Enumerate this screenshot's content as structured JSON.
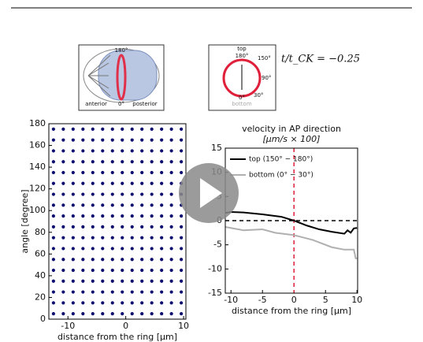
{
  "inset_embryo": {
    "top": "180°",
    "left": "anterior",
    "bottom": "0°",
    "right": "posterior"
  },
  "inset_ring": {
    "top": "top",
    "a180": "180°",
    "a150": "150°",
    "a90": "90°",
    "a30": "30°",
    "a0": "0°",
    "bottom": "bottom"
  },
  "time_label": "t/t_CK = −0.25",
  "chart_data": [
    {
      "type": "scatter",
      "xlabel": "distance from the ring [μm]",
      "ylabel": "angle [degree]",
      "xlim": [
        -13.3,
        10.4
      ],
      "ylim": [
        0,
        180
      ],
      "xticks": [
        -10,
        0,
        10
      ],
      "yticks": [
        0,
        20,
        40,
        60,
        80,
        100,
        120,
        140,
        160,
        180
      ],
      "color": "#0c0c70",
      "x": [
        -12.5,
        -10.8,
        -9.1,
        -7.4,
        -5.7,
        -4,
        -2.3,
        -0.6,
        1.1,
        2.8,
        4.5,
        6.2,
        7.9,
        9.6,
        -12.5,
        -10.8,
        -9.1,
        -7.4,
        -5.7,
        -4,
        -2.3,
        -0.6,
        1.1,
        2.8,
        4.5,
        6.2,
        7.9,
        9.6,
        -12.5,
        -10.8,
        -9.1,
        -7.4,
        -5.7,
        -4,
        -2.3,
        -0.6,
        1.1,
        2.8,
        4.5,
        6.2,
        7.9,
        9.6,
        -12.5,
        -10.8,
        -9.1,
        -7.4,
        -5.7,
        -4,
        -2.3,
        -0.6,
        1.1,
        2.8,
        4.5,
        6.2,
        7.9,
        9.6,
        -12.5,
        -10.8,
        -9.1,
        -7.4,
        -5.7,
        -4,
        -2.3,
        -0.6,
        1.1,
        2.8,
        4.5,
        6.2,
        7.9,
        9.6,
        -12.5,
        -10.8,
        -9.1,
        -7.4,
        -5.7,
        -4,
        -2.3,
        -0.6,
        1.1,
        2.8,
        4.5,
        6.2,
        7.9,
        9.6,
        -12.5,
        -10.8,
        -9.1,
        -7.4,
        -5.7,
        -4,
        -2.3,
        -0.6,
        1.1,
        2.8,
        4.5,
        6.2,
        7.9,
        9.6,
        -12.5,
        -10.8,
        -9.1,
        -7.4,
        -5.7,
        -4,
        -2.3,
        -0.6,
        1.1,
        2.8,
        4.5,
        6.2,
        7.9,
        9.6,
        -12.5,
        -10.8,
        -9.1,
        -7.4,
        -5.7,
        -4,
        -2.3,
        -0.6,
        1.1,
        2.8,
        4.5,
        6.2,
        7.9,
        9.6,
        -12.5,
        -10.8,
        -9.1,
        -7.4,
        -5.7,
        -4,
        -2.3,
        -0.6,
        1.1,
        2.8,
        4.5,
        6.2,
        7.9,
        9.6,
        -12.5,
        -10.8,
        -9.1,
        -7.4,
        -5.7,
        -4,
        -2.3,
        -0.6,
        1.1,
        2.8,
        4.5,
        6.2,
        7.9,
        9.6,
        -12.5,
        -10.8,
        -9.1,
        -7.4,
        -5.7,
        -4,
        -2.3,
        -0.6,
        1.1,
        2.8,
        4.5,
        6.2,
        7.9,
        9.6,
        -12.5,
        -10.8,
        -9.1,
        -7.4,
        -5.7,
        -4,
        -2.3,
        -0.6,
        1.1,
        2.8,
        4.5,
        6.2,
        7.9,
        9.6,
        -12.5,
        -10.8,
        -9.1,
        -7.4,
        -5.7,
        -4,
        -2.3,
        -0.6,
        1.1,
        2.8,
        4.5,
        6.2,
        7.9,
        9.6,
        -12.5,
        -10.8,
        -9.1,
        -7.4,
        -5.7,
        -4,
        -2.3,
        -0.6,
        1.1,
        2.8,
        4.5,
        6.2,
        7.9,
        9.6,
        -12.5,
        -10.8,
        -9.1,
        -7.4,
        -5.7,
        -4,
        -2.3,
        -0.6,
        1.1,
        2.8,
        4.5,
        6.2,
        7.9,
        9.6,
        -12.5,
        -10.8,
        -9.1,
        -7.4,
        -5.7,
        -4,
        -2.3,
        -0.6,
        1.1,
        2.8,
        4.5,
        6.2,
        7.9,
        9.6,
        -12.5,
        -10.8,
        -9.1,
        -7.4,
        -5.7,
        -4,
        -2.3,
        -0.6,
        1.1,
        2.8,
        4.5,
        6.2,
        7.9,
        9.6
      ],
      "y": [
        5,
        5,
        5,
        5,
        5,
        5,
        5,
        5,
        5,
        5,
        5,
        5,
        5,
        5,
        15,
        15,
        15,
        15,
        15,
        15,
        15,
        15,
        15,
        15,
        15,
        15,
        15,
        15,
        25,
        25,
        25,
        25,
        25,
        25,
        25,
        25,
        25,
        25,
        25,
        25,
        25,
        25,
        35,
        35,
        35,
        35,
        35,
        35,
        35,
        35,
        35,
        35,
        35,
        35,
        35,
        35,
        45,
        45,
        45,
        45,
        45,
        45,
        45,
        45,
        45,
        45,
        45,
        45,
        45,
        45,
        55,
        55,
        55,
        55,
        55,
        55,
        55,
        55,
        55,
        55,
        55,
        55,
        55,
        55,
        65,
        65,
        65,
        65,
        65,
        65,
        65,
        65,
        65,
        65,
        65,
        65,
        65,
        65,
        75,
        75,
        75,
        75,
        75,
        75,
        75,
        75,
        75,
        75,
        75,
        75,
        75,
        75,
        85,
        85,
        85,
        85,
        85,
        85,
        85,
        85,
        85,
        85,
        85,
        85,
        85,
        85,
        95,
        95,
        95,
        95,
        95,
        95,
        95,
        95,
        95,
        95,
        95,
        95,
        95,
        95,
        105,
        105,
        105,
        105,
        105,
        105,
        105,
        105,
        105,
        105,
        105,
        105,
        105,
        105,
        115,
        115,
        115,
        115,
        115,
        115,
        115,
        115,
        115,
        115,
        115,
        115,
        115,
        115,
        125,
        125,
        125,
        125,
        125,
        125,
        125,
        125,
        125,
        125,
        125,
        125,
        125,
        125,
        135,
        135,
        135,
        135,
        135,
        135,
        135,
        135,
        135,
        135,
        135,
        135,
        135,
        135,
        145,
        145,
        145,
        145,
        145,
        145,
        145,
        145,
        145,
        145,
        145,
        145,
        145,
        145,
        155,
        155,
        155,
        155,
        155,
        155,
        155,
        155,
        155,
        155,
        155,
        155,
        155,
        155,
        165,
        165,
        165,
        165,
        165,
        165,
        165,
        165,
        165,
        165,
        165,
        165,
        165,
        165,
        175,
        175,
        175,
        175,
        175,
        175,
        175,
        175,
        175,
        175,
        175,
        175,
        175,
        175
      ]
    },
    {
      "type": "line",
      "title": "velocity in AP direction",
      "subtitle": "[μm/s × 100]",
      "xlabel": "distance from the ring [μm]",
      "xlim": [
        -10.9,
        10.1
      ],
      "ylim": [
        -15,
        15
      ],
      "xticks": [
        -10,
        -5,
        0,
        5,
        10
      ],
      "yticks": [
        -15,
        -10,
        -5,
        0,
        5,
        10,
        15
      ],
      "series": [
        {
          "name": "top (150° − 180°)",
          "color": "#000000",
          "x": [
            -10.9,
            -10,
            -8,
            -5,
            -2,
            0,
            2,
            4,
            6,
            8,
            8.5,
            9,
            9.5,
            10
          ],
          "values": [
            1.6,
            1.8,
            1.7,
            1.3,
            0.8,
            0,
            -1,
            -1.8,
            -2.3,
            -2.7,
            -2,
            -2.5,
            -1.6,
            -1.5
          ]
        },
        {
          "name": "bottom (0° − 30°)",
          "color": "#b0b0b0",
          "x": [
            -10.9,
            -8,
            -5,
            -3,
            0,
            3,
            6,
            8,
            9.5,
            9.8,
            10
          ],
          "values": [
            -1.3,
            -2,
            -1.8,
            -2.5,
            -3,
            -4,
            -5.5,
            -6,
            -6,
            -7.8,
            -7.8
          ]
        }
      ]
    }
  ]
}
